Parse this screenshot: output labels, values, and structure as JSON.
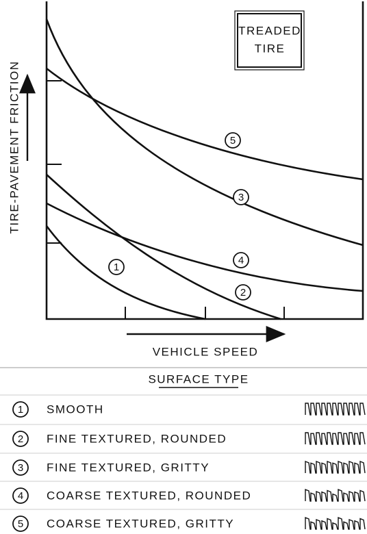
{
  "panel": {
    "note_lines": [
      "TREADED",
      "TIRE"
    ],
    "y_label": "TIRE-PAVEMENT FRICTION",
    "x_label": "VEHICLE SPEED"
  },
  "curves": [
    {
      "label": "1"
    },
    {
      "label": "2"
    },
    {
      "label": "3"
    },
    {
      "label": "4"
    },
    {
      "label": "5"
    }
  ],
  "legend": {
    "title": "SURFACE TYPE",
    "items": [
      {
        "number": "1",
        "label": "SMOOTH"
      },
      {
        "number": "2",
        "label": "FINE TEXTURED, ROUNDED"
      },
      {
        "number": "3",
        "label": "FINE TEXTURED, GRITTY"
      },
      {
        "number": "4",
        "label": "COARSE TEXTURED, ROUNDED"
      },
      {
        "number": "5",
        "label": "COARSE TEXTURED, GRITTY"
      }
    ]
  }
}
